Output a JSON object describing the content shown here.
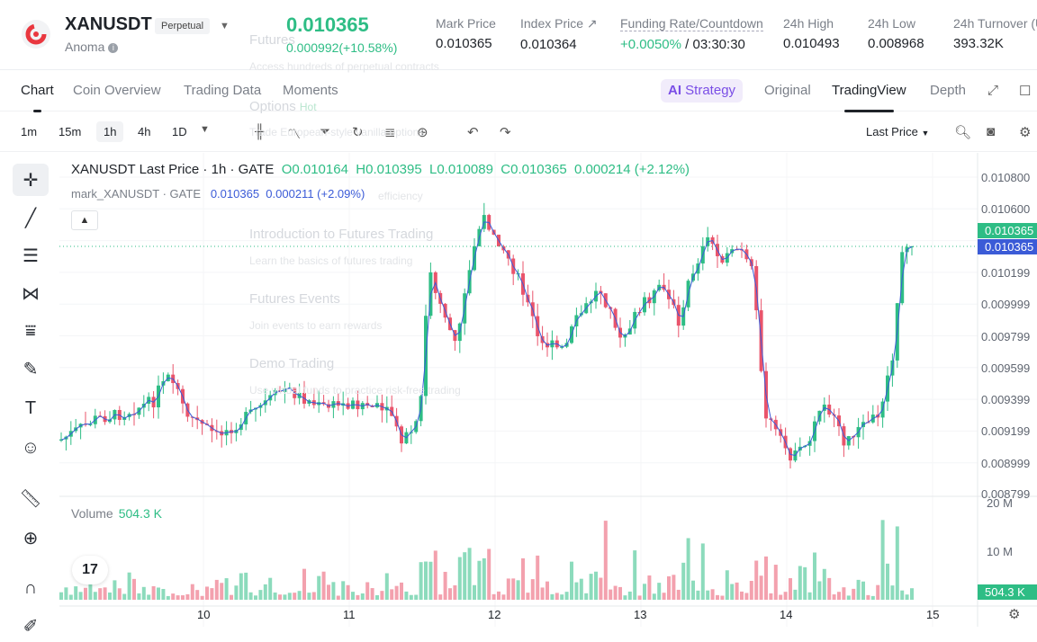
{
  "header": {
    "pair": "XANUSDT",
    "badge": "Perpetual",
    "project": "Anoma",
    "last_price": "0.010365",
    "change": "0.000992(+10.58%)",
    "stats": [
      {
        "k": "Mark Price",
        "v": "0.010365"
      },
      {
        "k": "Index Price ↗",
        "v": "0.010364"
      },
      {
        "k": "Funding Rate/Countdown",
        "v1": "+0.0050%",
        "v2": " / 03:30:30"
      },
      {
        "k": "24h High",
        "v": "0.010493"
      },
      {
        "k": "24h Low",
        "v": "0.008968"
      },
      {
        "k": "24h Turnover (U",
        "v": "393.32K"
      }
    ]
  },
  "tabs": [
    "Chart",
    "Coin Overview",
    "Trading Data",
    "Moments"
  ],
  "views": {
    "strategy": "Strategy",
    "original": "Original",
    "tradingview": "TradingView",
    "depth": "Depth"
  },
  "intervals": [
    "1m",
    "15m",
    "1h",
    "4h",
    "1D"
  ],
  "price_type": "Last Price",
  "legend": {
    "title": "XANUSDT Last Price · 1h · GATE",
    "o": "O0.010164",
    "h": "H0.010395",
    "l": "L0.010089",
    "c": "C0.010365",
    "chg": "0.000214 (+2.12%)",
    "mark": "mark_XANUSDT · GATE",
    "mark_val": "0.010365",
    "mark_chg": "0.000211 (+2.09%)"
  },
  "volume": {
    "label": "Volume",
    "value": "504.3 K",
    "tag": "504.3 K",
    "scale": [
      "20 M",
      "10 M"
    ]
  },
  "price_scale": [
    "0.010800",
    "0.010600",
    "0.010199",
    "0.009999",
    "0.009799",
    "0.009599",
    "0.009399",
    "0.009199",
    "0.008999",
    "0.008799"
  ],
  "price_tags": [
    "0.010365",
    "0.010365"
  ],
  "x_labels": [
    "10",
    "11",
    "12",
    "13",
    "14",
    "15"
  ],
  "menu_ghost": {
    "futures": "Futures",
    "futures_sub": "Access hundreds of perpetual contracts",
    "options": "Options",
    "hot": "Hot",
    "options_sub": "Trade European-style vanilla options",
    "intro": "Introduction to Futures Trading",
    "intro_sub": "Learn the basics of futures trading",
    "events": "Futures Events",
    "events_sub": "Join events to earn rewards",
    "demo": "Demo Trading",
    "demo_sub": "Use virtual funds to practice risk-free trading",
    "eff_sub": "efficiency"
  },
  "colors": {
    "up": "#2ebd85",
    "down": "#e9546b",
    "accent": "#7a4ee6",
    "mark": "#3b5bd7"
  },
  "chart_data": {
    "type": "candlestick",
    "x": [
      "10",
      "11",
      "12",
      "13",
      "14",
      "15"
    ],
    "ylim": [
      0.008799,
      0.0108
    ],
    "last": 0.010365,
    "volume_last": "504.3 K"
  }
}
